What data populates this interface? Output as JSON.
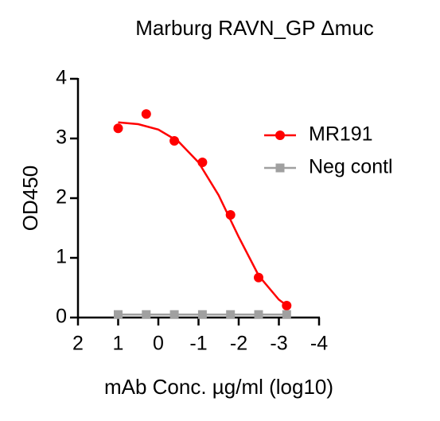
{
  "chart_data": {
    "type": "scatter",
    "title": "Marburg RAVN_GP Δmuc",
    "x_label": "mAb Conc. µg/ml (log10)",
    "y_label": "OD450",
    "x": [
      1,
      0.301,
      -0.398,
      -1.097,
      -1.796,
      -2.495,
      -3.194
    ],
    "series": [
      {
        "name": "MR191",
        "color": "#ff0000",
        "marker": "circle",
        "values": [
          3.17,
          3.41,
          2.96,
          2.6,
          1.72,
          0.67,
          0.2
        ],
        "curve": {
          "x": [
            1,
            0.5,
            0,
            -0.5,
            -1,
            -1.5,
            -2,
            -2.5,
            -3,
            -3.2
          ],
          "values": [
            3.27,
            3.24,
            3.15,
            2.95,
            2.6,
            2.05,
            1.35,
            0.7,
            0.3,
            0.2
          ]
        }
      },
      {
        "name": "Neg contl",
        "color": "#a0a0a0",
        "marker": "square",
        "values": [
          0.05,
          0.05,
          0.05,
          0.05,
          0.05,
          0.05,
          0.05
        ]
      }
    ],
    "xlim": [
      2,
      -4
    ],
    "xticks": [
      2,
      1,
      0,
      -1,
      -2,
      -3,
      -4
    ],
    "ylim": [
      0,
      4
    ],
    "yticks": [
      0,
      1,
      2,
      3,
      4
    ],
    "legend": "right"
  }
}
